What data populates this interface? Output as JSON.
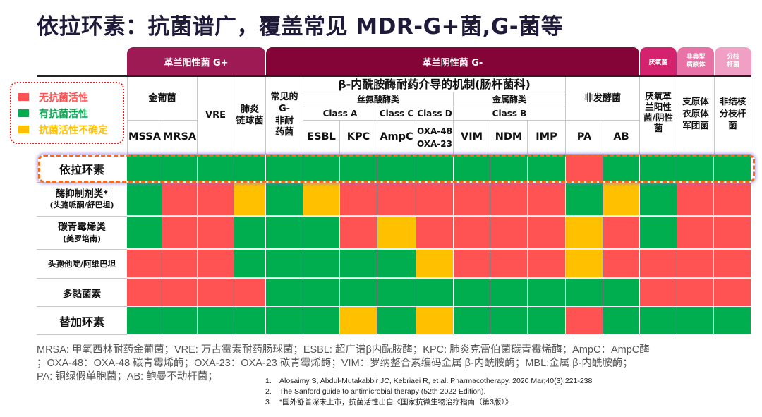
{
  "title": "依拉环素：抗菌谱广，覆盖常见 MDR-G+菌,G-菌等",
  "colors": {
    "red": "#ff5252",
    "green": "#00ad4f",
    "yellow": "#ffc000",
    "gram_positive_tab": "#9e1a55",
    "gram_negative_tab": "#840437",
    "anaerobe_tab": "#d4226e",
    "atypical_tab": "#e872a5",
    "ntm_tab": "#f0a0c4",
    "highlight_border": "#f26a1b"
  },
  "legend": {
    "items": [
      {
        "label": "无抗菌活性",
        "code": "R",
        "color": "#ff5252",
        "text_color": "#ff5252"
      },
      {
        "label": "有抗菌活性",
        "code": "G",
        "color": "#00ad4f",
        "text_color": "#00a84c"
      },
      {
        "label": "抗菌活性不确定",
        "code": "Y",
        "color": "#ffc000",
        "text_color": "#ffc000"
      }
    ]
  },
  "tabs": {
    "gram_positive": "革兰阳性菌 G+",
    "gram_negative": "革兰阴性菌 G-",
    "anaerobe": "厌氧菌",
    "atypical_l1": "非典型",
    "atypical_l2": "病原体",
    "ntm_l1": "分枝",
    "ntm_l2": "杆菌"
  },
  "header": {
    "staph": "金葡菌",
    "mssa": "MSSA",
    "mrsa": "MRSA",
    "vre": "VRE",
    "strep_l1": "肺炎",
    "strep_l2": "链球菌",
    "gneg_l1": "常见的",
    "gneg_l2": "G-",
    "gneg_l3": "非耐",
    "gneg_l4": "药菌",
    "beta_lactamase": "β-内酰胺酶耐药介导的机制(肠杆菌科)",
    "serine": "丝氨酸酶类",
    "metallo": "金属酶类",
    "class_a": "Class A",
    "class_c": "Class C",
    "class_d": "Class D",
    "class_b": "Class B",
    "esbl": "ESBL",
    "kpc": "KPC",
    "ampc": "AmpC",
    "oxa48": "OXA-48",
    "oxa23": "OXA-23",
    "vim": "VIM",
    "ndm": "NDM",
    "imp": "IMP",
    "nonferm": "非发酵菌",
    "pa": "PA",
    "ab": "AB",
    "anaerobe_l1": "厌氧革",
    "anaerobe_l2": "兰阳性",
    "anaerobe_l3": "菌/阴性",
    "anaerobe_l4": "菌",
    "atypical_l1": "支原体",
    "atypical_l2": "衣原体",
    "atypical_l3": "军团菌",
    "ntm_l1": "非结核",
    "ntm_l2": "分枝杆",
    "ntm_l3": "菌"
  },
  "columns": [
    "MSSA",
    "MRSA",
    "VRE",
    "肺炎链球菌",
    "常见的G-非耐药菌",
    "ESBL",
    "KPC",
    "AmpC",
    "OXA-48/OXA-23",
    "VIM",
    "NDM",
    "IMP",
    "PA",
    "AB",
    "厌氧革兰阳性菌/阴性菌",
    "支原体衣原体军团菌",
    "非结核分枝杆菌"
  ],
  "rows": [
    {
      "label": "依拉环素",
      "sub": "",
      "highlighted": true,
      "values": [
        "G",
        "G",
        "G",
        "G",
        "G",
        "G",
        "G",
        "G",
        "G",
        "G",
        "G",
        "G",
        "R",
        "G",
        "G",
        "G",
        "G"
      ]
    },
    {
      "label": "酶抑制剂类*",
      "sub": "(头孢哌酮/舒巴坦)",
      "highlighted": false,
      "values": [
        "G",
        "R",
        "R",
        "Y",
        "G",
        "Y",
        "R",
        "R",
        "R",
        "R",
        "R",
        "R",
        "G",
        "Y",
        "G",
        "R",
        "R"
      ]
    },
    {
      "label": "碳青霉烯类",
      "sub": "(美罗培南)",
      "highlighted": false,
      "values": [
        "G",
        "R",
        "R",
        "G",
        "G",
        "G",
        "R",
        "Y",
        "R",
        "R",
        "R",
        "R",
        "Y",
        "R",
        "G",
        "R",
        "R"
      ]
    },
    {
      "label": "头孢他啶/阿维巴坦",
      "sub": "",
      "highlighted": false,
      "values": [
        "R",
        "R",
        "R",
        "G",
        "G",
        "G",
        "G",
        "G",
        "Y",
        "R",
        "R",
        "R",
        "Y",
        "R",
        "R",
        "R",
        "R"
      ]
    },
    {
      "label": "多黏菌素",
      "sub": "",
      "highlighted": false,
      "values": [
        "R",
        "R",
        "R",
        "R",
        "G",
        "G",
        "G",
        "G",
        "G",
        "G",
        "G",
        "G",
        "G",
        "G",
        "R",
        "R",
        "R"
      ]
    },
    {
      "label": "替加环素",
      "sub": "",
      "highlighted": false,
      "values": [
        "G",
        "G",
        "G",
        "G",
        "G",
        "G",
        "Y",
        "G",
        "Y",
        "G",
        "G",
        "G",
        "R",
        "G",
        "G",
        "G",
        "G"
      ]
    }
  ],
  "footnote": {
    "abbr_line1": "MRSA: 甲氧西林耐药金葡菌；VRE: 万古霉素耐药肠球菌；ESBL: 超广谱β内酰胺酶；KPC: 肺炎克雷伯菌碳青霉烯酶；AmpC：AmpC酶",
    "abbr_line2": "；OXA-48：OXA-48 碳青霉烯酶；OXA-23：OXA-23 碳青霉烯酶；VIM：罗纳整合素编码金属 β-内酰胺酶；MBL:金属 β-内酰胺酶；",
    "abbr_line3": "PA: 铜绿假单胞菌；AB: 鲍曼不动杆菌；",
    "references": [
      {
        "num": "1.",
        "text": "Alosaimy S, Abdul-Mutakabbir JC, Kebriaei R, et al. Pharmacotherapy. 2020 Mar;40(3):221-238"
      },
      {
        "num": "2.",
        "text": "The Sanford guide to antimicrobial therapy (52th 2022 Edition)."
      },
      {
        "num": "3.",
        "text": "*国外舒普深未上市，抗菌活性出自《国家抗微生物治疗指南（第3版）》"
      }
    ]
  }
}
